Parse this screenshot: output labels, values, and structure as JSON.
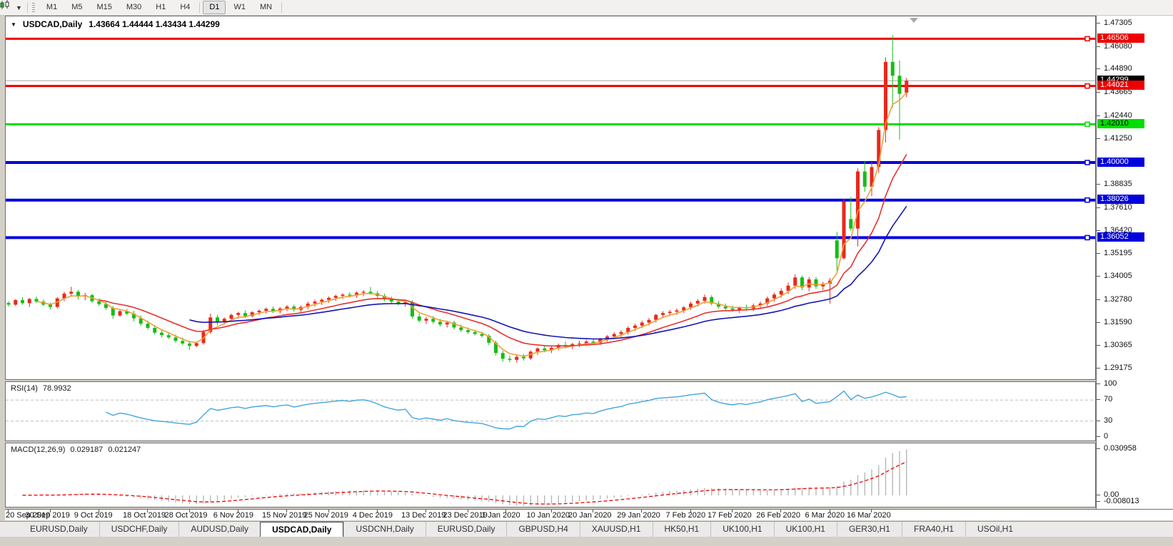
{
  "toolbar": {
    "chart_icon": "candlestick-chart-icon",
    "timeframes": [
      {
        "label": "M1",
        "active": false
      },
      {
        "label": "M5",
        "active": false
      },
      {
        "label": "M15",
        "active": false
      },
      {
        "label": "M30",
        "active": false
      },
      {
        "label": "H1",
        "active": false
      },
      {
        "label": "H4",
        "active": false
      },
      {
        "label": "D1",
        "active": true
      },
      {
        "label": "W1",
        "active": false
      },
      {
        "label": "MN",
        "active": false
      }
    ]
  },
  "chart_data": {
    "type": "candlestick",
    "title": {
      "symbol": "USDCAD,Daily",
      "ohlc": "1.43664 1.44444 1.43434 1.44299"
    },
    "current": {
      "open": 1.43664,
      "high": 1.44444,
      "low": 1.43434,
      "close": 1.44299
    },
    "colors": {
      "bull": "#e8291c",
      "bear": "#17bd17",
      "line_red": "#ee0000",
      "line_green": "#00dd00",
      "line_blue": "#0000dc",
      "ma_fast": "#efa036",
      "ma_medium": "#e53030",
      "ma_slow": "#1515b5",
      "rsi_line": "#42a5dc",
      "macd_hist": "#b2b2b2",
      "macd_signal": "#ee0000",
      "price_line": "#a8a8a8"
    },
    "price_axis": {
      "top_price": 1.47305,
      "bottom_price": 1.29175,
      "ticks": [
        "1.47305",
        "1.46080",
        "1.44890",
        "1.43665",
        "1.42440",
        "1.41250",
        "1.38835",
        "1.37610",
        "1.36420",
        "1.35195",
        "1.34005",
        "1.32780",
        "1.31590",
        "1.30365",
        "1.29175"
      ]
    },
    "horizontal_lines": [
      {
        "label": "1.46506",
        "price": 1.46506,
        "color": "#ee0000",
        "width": 3,
        "badge_fg": "#fff"
      },
      {
        "label": "1.44021",
        "price": 1.44021,
        "color": "#ee0000",
        "width": 3,
        "badge_fg": "#fff"
      },
      {
        "label": "1.42010",
        "price": 1.4201,
        "color": "#00dd00",
        "width": 3,
        "badge_fg": "#000"
      },
      {
        "label": "1.40000",
        "price": 1.4,
        "color": "#0000dc",
        "width": 4,
        "badge_fg": "#fff"
      },
      {
        "label": "1.38026",
        "price": 1.38026,
        "color": "#0000dc",
        "width": 4,
        "badge_fg": "#fff"
      },
      {
        "label": "1.36052",
        "price": 1.36052,
        "color": "#0000dc",
        "width": 4,
        "badge_fg": "#fff"
      }
    ],
    "price_line": {
      "label": "1.44299",
      "price": 1.44299
    },
    "moving_averages": [
      {
        "name": "fast",
        "period": 4,
        "color": "#efa036"
      },
      {
        "name": "medium",
        "period": 13,
        "color": "#e53030"
      },
      {
        "name": "slow",
        "period": 26,
        "color": "#1515b5"
      }
    ],
    "indicators": {
      "rsi": {
        "name": "RSI(14)",
        "value": "78.9932",
        "period": 14,
        "ticks": [
          "100",
          "70",
          "30",
          "0"
        ],
        "levels": [
          70,
          30
        ]
      },
      "macd": {
        "name": "MACD(12,26,9)",
        "main_value": "0.029187",
        "signal_value": "0.021247",
        "fast": 12,
        "slow": 26,
        "signal": 9,
        "axis_max": 0.030958,
        "axis_min": -0.008013,
        "ticks": [
          "0.030958",
          "0.00",
          "-0.008013"
        ]
      }
    },
    "date_labels": [
      {
        "text": "20 Sep 2019",
        "i": 0
      },
      {
        "text": "30 Sep 2019",
        "i": 6
      },
      {
        "text": "9 Oct 2019",
        "i": 13
      },
      {
        "text": "18 Oct 2019",
        "i": 20
      },
      {
        "text": "28 Oct 2019",
        "i": 26
      },
      {
        "text": "6 Nov 2019",
        "i": 33
      },
      {
        "text": "15 Nov 2019",
        "i": 40
      },
      {
        "text": "25 Nov 2019",
        "i": 46
      },
      {
        "text": "4 Dec 2019",
        "i": 53
      },
      {
        "text": "13 Dec 2019",
        "i": 60
      },
      {
        "text": "23 Dec 2019",
        "i": 66
      },
      {
        "text": "1 Jan 2020",
        "i": 71.5
      },
      {
        "text": "10 Jan 2020",
        "i": 78
      },
      {
        "text": "20 Jan 2020",
        "i": 84
      },
      {
        "text": "29 Jan 2020",
        "i": 91
      },
      {
        "text": "7 Feb 2020",
        "i": 98
      },
      {
        "text": "17 Feb 2020",
        "i": 104
      },
      {
        "text": "26 Feb 2020",
        "i": 111
      },
      {
        "text": "6 Mar 2020",
        "i": 118
      },
      {
        "text": "16 Mar 2020",
        "i": 124
      }
    ],
    "candles": [
      [
        1.3262,
        1.3271,
        1.3243,
        1.3253
      ],
      [
        1.3253,
        1.3283,
        1.3247,
        1.3277
      ],
      [
        1.3277,
        1.3291,
        1.3253,
        1.3261
      ],
      [
        1.3261,
        1.3289,
        1.3241,
        1.3283
      ],
      [
        1.3283,
        1.3296,
        1.3261,
        1.3269
      ],
      [
        1.3269,
        1.3281,
        1.3246,
        1.3253
      ],
      [
        1.3253,
        1.3263,
        1.3228,
        1.3241
      ],
      [
        1.3241,
        1.3293,
        1.3233,
        1.3286
      ],
      [
        1.3286,
        1.3321,
        1.3271,
        1.3311
      ],
      [
        1.3311,
        1.3347,
        1.3299,
        1.3321
      ],
      [
        1.3321,
        1.3331,
        1.3281,
        1.3296
      ],
      [
        1.3296,
        1.3316,
        1.3276,
        1.3303
      ],
      [
        1.3303,
        1.3311,
        1.3263,
        1.3271
      ],
      [
        1.3271,
        1.3286,
        1.3246,
        1.3256
      ],
      [
        1.3256,
        1.3271,
        1.3226,
        1.3236
      ],
      [
        1.3236,
        1.3246,
        1.3179,
        1.3196
      ],
      [
        1.3196,
        1.3226,
        1.3189,
        1.3219
      ],
      [
        1.3219,
        1.3231,
        1.3196,
        1.3206
      ],
      [
        1.3206,
        1.3221,
        1.3166,
        1.3181
      ],
      [
        1.3181,
        1.3196,
        1.3141,
        1.3153
      ],
      [
        1.3153,
        1.3169,
        1.3121,
        1.3131
      ],
      [
        1.3131,
        1.3146,
        1.3096,
        1.3106
      ],
      [
        1.3106,
        1.3121,
        1.3081,
        1.3093
      ],
      [
        1.3093,
        1.3109,
        1.3073,
        1.3081
      ],
      [
        1.3081,
        1.3096,
        1.3053,
        1.3063
      ],
      [
        1.3063,
        1.3081,
        1.3041,
        1.3049
      ],
      [
        1.3049,
        1.3063,
        1.3016,
        1.3036
      ],
      [
        1.3036,
        1.3059,
        1.3029,
        1.3051
      ],
      [
        1.3051,
        1.3121,
        1.3043,
        1.3109
      ],
      [
        1.3109,
        1.3206,
        1.3101,
        1.3186
      ],
      [
        1.3186,
        1.3199,
        1.3146,
        1.3163
      ],
      [
        1.3163,
        1.3186,
        1.3149,
        1.3179
      ],
      [
        1.3179,
        1.3206,
        1.3166,
        1.3199
      ],
      [
        1.3199,
        1.3216,
        1.3179,
        1.3209
      ],
      [
        1.3209,
        1.3223,
        1.3183,
        1.3193
      ],
      [
        1.3193,
        1.3219,
        1.3186,
        1.3213
      ],
      [
        1.3213,
        1.3229,
        1.3199,
        1.3221
      ],
      [
        1.3221,
        1.3239,
        1.3206,
        1.3231
      ],
      [
        1.3231,
        1.3243,
        1.3209,
        1.3219
      ],
      [
        1.3219,
        1.3241,
        1.3206,
        1.3233
      ],
      [
        1.3233,
        1.3251,
        1.3219,
        1.3243
      ],
      [
        1.3243,
        1.3253,
        1.3216,
        1.3226
      ],
      [
        1.3226,
        1.3249,
        1.3213,
        1.3241
      ],
      [
        1.3241,
        1.3269,
        1.3229,
        1.3259
      ],
      [
        1.3259,
        1.3279,
        1.3243,
        1.3269
      ],
      [
        1.3269,
        1.3286,
        1.3251,
        1.3279
      ],
      [
        1.3279,
        1.3296,
        1.3263,
        1.3289
      ],
      [
        1.3289,
        1.3306,
        1.3273,
        1.3299
      ],
      [
        1.3299,
        1.3313,
        1.3283,
        1.3306
      ],
      [
        1.3306,
        1.3319,
        1.3291,
        1.3301
      ],
      [
        1.3301,
        1.3323,
        1.3289,
        1.3316
      ],
      [
        1.3316,
        1.3329,
        1.3299,
        1.3321
      ],
      [
        1.3321,
        1.3346,
        1.3306,
        1.3313
      ],
      [
        1.3313,
        1.3326,
        1.3289,
        1.3299
      ],
      [
        1.3299,
        1.3311,
        1.3271,
        1.3281
      ],
      [
        1.3281,
        1.3296,
        1.3256,
        1.3269
      ],
      [
        1.3269,
        1.3283,
        1.3249,
        1.3259
      ],
      [
        1.3259,
        1.3273,
        1.3243,
        1.3266
      ],
      [
        1.3266,
        1.3276,
        1.3179,
        1.3191
      ],
      [
        1.3191,
        1.3206,
        1.3159,
        1.3169
      ],
      [
        1.3169,
        1.3189,
        1.3151,
        1.3179
      ],
      [
        1.3179,
        1.3193,
        1.3153,
        1.3163
      ],
      [
        1.3163,
        1.3179,
        1.3139,
        1.3149
      ],
      [
        1.3149,
        1.3166,
        1.3133,
        1.3159
      ],
      [
        1.3159,
        1.3169,
        1.3123,
        1.3133
      ],
      [
        1.3133,
        1.3149,
        1.3109,
        1.3119
      ],
      [
        1.3119,
        1.3133,
        1.3099,
        1.3109
      ],
      [
        1.3109,
        1.3121,
        1.3091,
        1.3099
      ],
      [
        1.3099,
        1.3111,
        1.3079,
        1.3089
      ],
      [
        1.3089,
        1.3099,
        1.3041,
        1.3053
      ],
      [
        1.3053,
        1.3063,
        1.2986,
        1.2999
      ],
      [
        1.2999,
        1.3011,
        1.2953,
        1.2969
      ],
      [
        1.2969,
        1.2986,
        1.2951,
        1.2963
      ],
      [
        1.2963,
        1.2989,
        1.2949,
        1.2979
      ],
      [
        1.2979,
        1.2993,
        1.2959,
        1.2971
      ],
      [
        1.2971,
        1.3013,
        1.2963,
        1.3006
      ],
      [
        1.3006,
        1.3029,
        1.2989,
        1.3023
      ],
      [
        1.3023,
        1.3039,
        1.3003,
        1.3013
      ],
      [
        1.3013,
        1.3033,
        1.2999,
        1.3026
      ],
      [
        1.3026,
        1.3049,
        1.3013,
        1.3041
      ],
      [
        1.3041,
        1.3059,
        1.3023,
        1.3033
      ],
      [
        1.3033,
        1.3053,
        1.3019,
        1.3046
      ],
      [
        1.3046,
        1.3063,
        1.3031,
        1.3049
      ],
      [
        1.3049,
        1.3069,
        1.3036,
        1.3059
      ],
      [
        1.3059,
        1.3073,
        1.3043,
        1.3053
      ],
      [
        1.3053,
        1.3079,
        1.3041,
        1.3071
      ],
      [
        1.3071,
        1.3093,
        1.3059,
        1.3086
      ],
      [
        1.3086,
        1.3109,
        1.3073,
        1.3099
      ],
      [
        1.3099,
        1.3119,
        1.3083,
        1.3109
      ],
      [
        1.3109,
        1.3139,
        1.3096,
        1.3131
      ],
      [
        1.3131,
        1.3153,
        1.3116,
        1.3143
      ],
      [
        1.3143,
        1.3169,
        1.3129,
        1.3159
      ],
      [
        1.3159,
        1.3183,
        1.3143,
        1.3173
      ],
      [
        1.3173,
        1.3206,
        1.3159,
        1.3199
      ],
      [
        1.3199,
        1.3219,
        1.3183,
        1.3209
      ],
      [
        1.3209,
        1.3226,
        1.3193,
        1.3216
      ],
      [
        1.3216,
        1.3233,
        1.3199,
        1.3223
      ],
      [
        1.3223,
        1.3246,
        1.3209,
        1.3239
      ],
      [
        1.3239,
        1.3269,
        1.3226,
        1.3259
      ],
      [
        1.3259,
        1.3283,
        1.3243,
        1.3273
      ],
      [
        1.3273,
        1.3306,
        1.3259,
        1.3293
      ],
      [
        1.3293,
        1.3303,
        1.3249,
        1.3259
      ],
      [
        1.3259,
        1.3273,
        1.3233,
        1.3243
      ],
      [
        1.3243,
        1.3259,
        1.3223,
        1.3233
      ],
      [
        1.3233,
        1.3249,
        1.3216,
        1.3226
      ],
      [
        1.3226,
        1.3243,
        1.3209,
        1.3239
      ],
      [
        1.3239,
        1.3253,
        1.3223,
        1.3233
      ],
      [
        1.3233,
        1.3259,
        1.3219,
        1.3249
      ],
      [
        1.3249,
        1.3269,
        1.3233,
        1.3259
      ],
      [
        1.3259,
        1.3296,
        1.3246,
        1.3286
      ],
      [
        1.3286,
        1.3316,
        1.3269,
        1.3306
      ],
      [
        1.3306,
        1.3339,
        1.3289,
        1.3326
      ],
      [
        1.3326,
        1.3369,
        1.3309,
        1.3353
      ],
      [
        1.3353,
        1.3413,
        1.3336,
        1.3396
      ],
      [
        1.3396,
        1.3406,
        1.3329,
        1.3343
      ],
      [
        1.3343,
        1.3399,
        1.3323,
        1.3386
      ],
      [
        1.3386,
        1.3399,
        1.3336,
        1.3349
      ],
      [
        1.3349,
        1.3373,
        1.3329,
        1.3363
      ],
      [
        1.3363,
        1.3393,
        1.3259,
        1.3379
      ],
      [
        1.3591,
        1.3636,
        1.3429,
        1.3497
      ],
      [
        1.3497,
        1.3811,
        1.3489,
        1.3796
      ],
      [
        1.3703,
        1.3819,
        1.3641,
        1.3653
      ],
      [
        1.3653,
        1.3969,
        1.3559,
        1.3953
      ],
      [
        1.3953,
        1.4009,
        1.3846,
        1.3873
      ],
      [
        1.3873,
        1.4003,
        1.3823,
        1.3976
      ],
      [
        1.3976,
        1.4186,
        1.3946,
        1.4171
      ],
      [
        1.4171,
        1.4553,
        1.4106,
        1.4529
      ],
      [
        1.4529,
        1.4669,
        1.4289,
        1.4456
      ],
      [
        1.4456,
        1.4536,
        1.4121,
        1.4361
      ],
      [
        1.43664,
        1.44444,
        1.43434,
        1.44299
      ]
    ]
  },
  "tabs": [
    {
      "label": "EURUSD,Daily",
      "active": false
    },
    {
      "label": "USDCHF,Daily",
      "active": false
    },
    {
      "label": "AUDUSD,Daily",
      "active": false
    },
    {
      "label": "USDCAD,Daily",
      "active": true
    },
    {
      "label": "USDCNH,Daily",
      "active": false
    },
    {
      "label": "EURUSD,Daily",
      "active": false
    },
    {
      "label": "GBPUSD,H4",
      "active": false
    },
    {
      "label": "XAUUSD,H1",
      "active": false
    },
    {
      "label": "HK50,H1",
      "active": false
    },
    {
      "label": "UK100,H1",
      "active": false
    },
    {
      "label": "UK100,H1",
      "active": false
    },
    {
      "label": "GER30,H1",
      "active": false
    },
    {
      "label": "FRA40,H1",
      "active": false
    },
    {
      "label": "USOil,H1",
      "active": false
    }
  ]
}
